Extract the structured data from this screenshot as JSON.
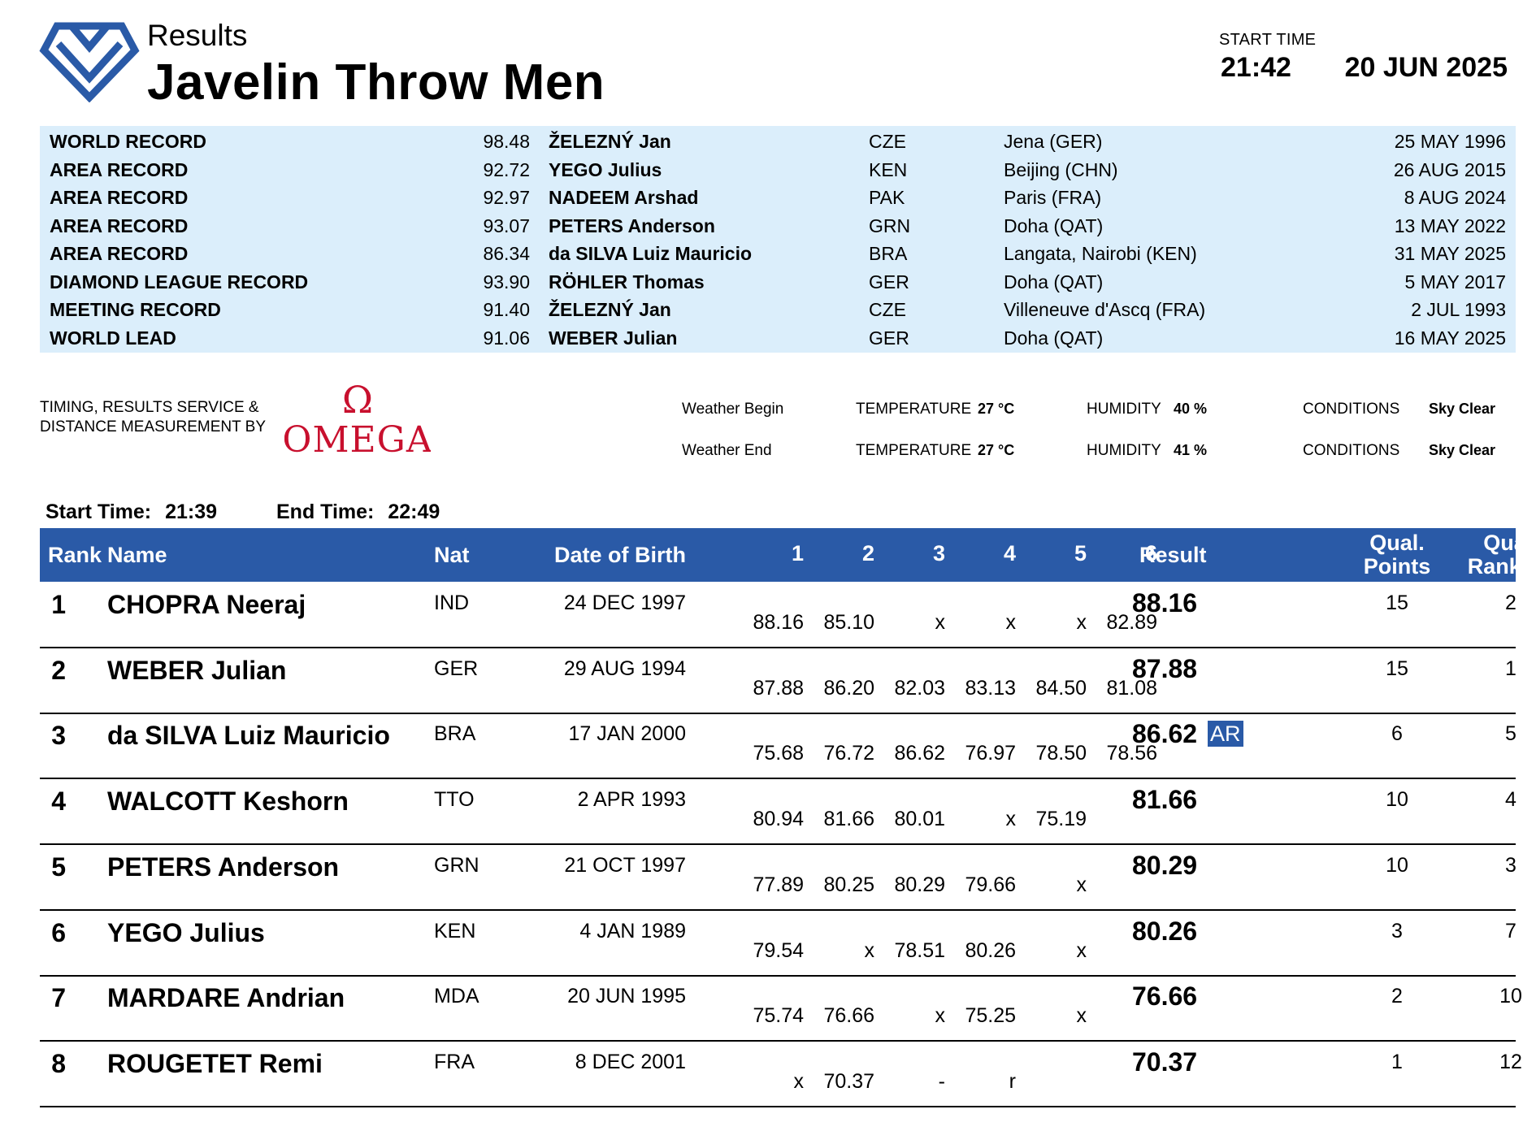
{
  "header": {
    "doc_type": "Results",
    "event_title": "Javelin Throw Men",
    "start_time_label": "START TIME",
    "start_time": "21:42",
    "date": "20 JUN 2025",
    "logo_icon": "diamond-league-logo-icon",
    "brand_color": "#2a5aa7"
  },
  "records": [
    {
      "type": "WORLD RECORD",
      "mark": "98.48",
      "name": "ŽELEZNÝ Jan",
      "nat": "CZE",
      "venue": "Jena (GER)",
      "date": "25 MAY 1996"
    },
    {
      "type": "AREA RECORD",
      "mark": "92.72",
      "name": "YEGO Julius",
      "nat": "KEN",
      "venue": "Beijing (CHN)",
      "date": "26 AUG 2015"
    },
    {
      "type": "AREA RECORD",
      "mark": "92.97",
      "name": "NADEEM Arshad",
      "nat": "PAK",
      "venue": "Paris (FRA)",
      "date": "8 AUG 2024"
    },
    {
      "type": "AREA RECORD",
      "mark": "93.07",
      "name": "PETERS Anderson",
      "nat": "GRN",
      "venue": "Doha (QAT)",
      "date": "13 MAY 2022"
    },
    {
      "type": "AREA RECORD",
      "mark": "86.34",
      "name": "da SILVA Luiz Mauricio",
      "nat": "BRA",
      "venue": "Langata, Nairobi (KEN)",
      "date": "31 MAY 2025"
    },
    {
      "type": "DIAMOND LEAGUE RECORD",
      "mark": "93.90",
      "name": "RÖHLER Thomas",
      "nat": "GER",
      "venue": "Doha (QAT)",
      "date": "5 MAY 2017"
    },
    {
      "type": "MEETING RECORD",
      "mark": "91.40",
      "name": "ŽELEZNÝ Jan",
      "nat": "CZE",
      "venue": "Villeneuve d'Ascq (FRA)",
      "date": "2 JUL 1993"
    },
    {
      "type": "WORLD LEAD",
      "mark": "91.06",
      "name": "WEBER Julian",
      "nat": "GER",
      "venue": "Doha (QAT)",
      "date": "16 MAY 2025"
    }
  ],
  "timing": {
    "label": "TIMING, RESULTS SERVICE &\nDISTANCE MEASUREMENT BY",
    "brand": "OMEGA",
    "brand_symbol": "Ω",
    "brand_color": "#c8102e"
  },
  "weather": [
    {
      "label": "Weather Begin",
      "temp_label": "TEMPERATURE",
      "temp": "27 °C",
      "hum_label": "HUMIDITY",
      "hum": "40 %",
      "cond_label": "CONDITIONS",
      "cond": "Sky Clear"
    },
    {
      "label": "Weather End",
      "temp_label": "TEMPERATURE",
      "temp": "27 °C",
      "hum_label": "HUMIDITY",
      "hum": "41 %",
      "cond_label": "CONDITIONS",
      "cond": "Sky Clear"
    }
  ],
  "times": {
    "start_label": "Start Time:",
    "start": "21:39",
    "end_label": "End Time:",
    "end": "22:49"
  },
  "table": {
    "headers": {
      "rank": "Rank",
      "name": "Name",
      "nat": "Nat",
      "dob": "Date of Birth",
      "a1": "1",
      "a2": "2",
      "a3": "3",
      "a4": "4",
      "a5": "5",
      "a6": "6",
      "result": "Result",
      "qual_points": "Qual.\nPoints",
      "qual_ranking": "Qual.\nRanking"
    },
    "rows": [
      {
        "rank": "1",
        "name": "CHOPRA Neeraj",
        "nat": "IND",
        "dob": "24 DEC 1997",
        "attempts": [
          "88.16",
          "85.10",
          "x",
          "x",
          "x",
          "82.89"
        ],
        "result": "88.16",
        "record": "",
        "qual_points": "15",
        "qual_ranking": "2"
      },
      {
        "rank": "2",
        "name": "WEBER Julian",
        "nat": "GER",
        "dob": "29 AUG 1994",
        "attempts": [
          "87.88",
          "86.20",
          "82.03",
          "83.13",
          "84.50",
          "81.08"
        ],
        "result": "87.88",
        "record": "",
        "qual_points": "15",
        "qual_ranking": "1"
      },
      {
        "rank": "3",
        "name": "da SILVA Luiz Mauricio",
        "nat": "BRA",
        "dob": "17 JAN 2000",
        "attempts": [
          "75.68",
          "76.72",
          "86.62",
          "76.97",
          "78.50",
          "78.56"
        ],
        "result": "86.62",
        "record": "AR",
        "qual_points": "6",
        "qual_ranking": "5"
      },
      {
        "rank": "4",
        "name": "WALCOTT Keshorn",
        "nat": "TTO",
        "dob": "2 APR 1993",
        "attempts": [
          "80.94",
          "81.66",
          "80.01",
          "x",
          "75.19",
          ""
        ],
        "result": "81.66",
        "record": "",
        "qual_points": "10",
        "qual_ranking": "4"
      },
      {
        "rank": "5",
        "name": "PETERS Anderson",
        "nat": "GRN",
        "dob": "21 OCT 1997",
        "attempts": [
          "77.89",
          "80.25",
          "80.29",
          "79.66",
          "x",
          ""
        ],
        "result": "80.29",
        "record": "",
        "qual_points": "10",
        "qual_ranking": "3"
      },
      {
        "rank": "6",
        "name": "YEGO Julius",
        "nat": "KEN",
        "dob": "4 JAN 1989",
        "attempts": [
          "79.54",
          "x",
          "78.51",
          "80.26",
          "x",
          ""
        ],
        "result": "80.26",
        "record": "",
        "qual_points": "3",
        "qual_ranking": "7"
      },
      {
        "rank": "7",
        "name": "MARDARE Andrian",
        "nat": "MDA",
        "dob": "20 JUN 1995",
        "attempts": [
          "75.74",
          "76.66",
          "x",
          "75.25",
          "x",
          ""
        ],
        "result": "76.66",
        "record": "",
        "qual_points": "2",
        "qual_ranking": "10"
      },
      {
        "rank": "8",
        "name": "ROUGETET Remi",
        "nat": "FRA",
        "dob": "8 DEC 2001",
        "attempts": [
          "x",
          "70.37",
          "-",
          "r",
          "",
          ""
        ],
        "result": "70.37",
        "record": "",
        "qual_points": "1",
        "qual_ranking": "12"
      }
    ]
  }
}
